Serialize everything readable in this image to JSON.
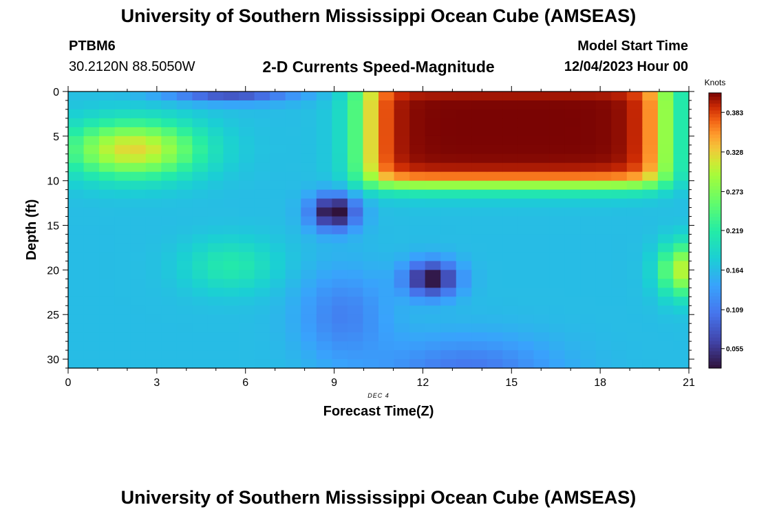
{
  "header": {
    "title": "University of Southern Mississippi Ocean Cube (AMSEAS)",
    "station_id": "PTBM6",
    "coordinates": "30.2120N  88.5050W",
    "plot_title": "2-D Currents Speed-Magnitude",
    "model_start_label": "Model Start Time",
    "model_start_value": "12/04/2023 Hour 00"
  },
  "footer": {
    "title": "University of Southern Mississippi Ocean Cube (AMSEAS)"
  },
  "chart_data": {
    "type": "heatmap",
    "title": "2-D Currents Speed-Magnitude",
    "xlabel": "Forecast Time(Z)",
    "ylabel": "Depth (ft)",
    "x_annotation": "DEC 4",
    "xlim": [
      0,
      21
    ],
    "ylim": [
      0,
      31
    ],
    "y_inverted": true,
    "x_ticks": [
      0,
      3,
      6,
      9,
      12,
      15,
      18,
      21
    ],
    "x_tick_labels": [
      "0",
      "3",
      "6",
      "9",
      "12",
      "15",
      "18",
      "21"
    ],
    "y_ticks": [
      0,
      5,
      10,
      15,
      20,
      25,
      30
    ],
    "y_tick_labels": [
      "0",
      "5",
      "10",
      "15",
      "20",
      "25",
      "30"
    ],
    "colorbar": {
      "label": "Knots",
      "range": [
        0.028,
        0.41
      ],
      "ticks": [
        0.055,
        0.109,
        0.164,
        0.219,
        0.273,
        0.328,
        0.383
      ],
      "tick_labels": [
        "0.055",
        "0.109",
        "0.164",
        "0.219",
        "0.273",
        "0.328",
        "0.383"
      ]
    },
    "features": [
      {
        "x": 2.2,
        "y": 6.5,
        "sx": 2.3,
        "sy": 3.2,
        "v": 0.16
      },
      {
        "x": 5.5,
        "y": 19.5,
        "sx": 1.6,
        "sy": 3.0,
        "v": 0.05
      },
      {
        "x": 9.0,
        "y": 13.5,
        "sx": 0.8,
        "sy": 2.0,
        "v": -0.15
      },
      {
        "x": 12.3,
        "y": 21.0,
        "sx": 0.9,
        "sy": 2.0,
        "v": -0.14
      },
      {
        "x": 13.5,
        "y": 31.5,
        "sx": 3.0,
        "sy": 4.0,
        "v": -0.06
      },
      {
        "x": 20.8,
        "y": 20.0,
        "sx": 0.8,
        "sy": 3.0,
        "v": 0.14
      },
      {
        "x": 5.5,
        "y": 0.0,
        "sx": 2.2,
        "sy": 1.2,
        "v": -0.1
      },
      {
        "x": 9.3,
        "y": 25.0,
        "sx": 1.5,
        "sy": 5.0,
        "v": -0.05
      }
    ],
    "base_value": 0.165,
    "jet_region": {
      "x_start": 10.0,
      "x_end": 20.2,
      "depth_top": 0,
      "depth_bottom": 10.5,
      "peak": 0.41
    }
  }
}
